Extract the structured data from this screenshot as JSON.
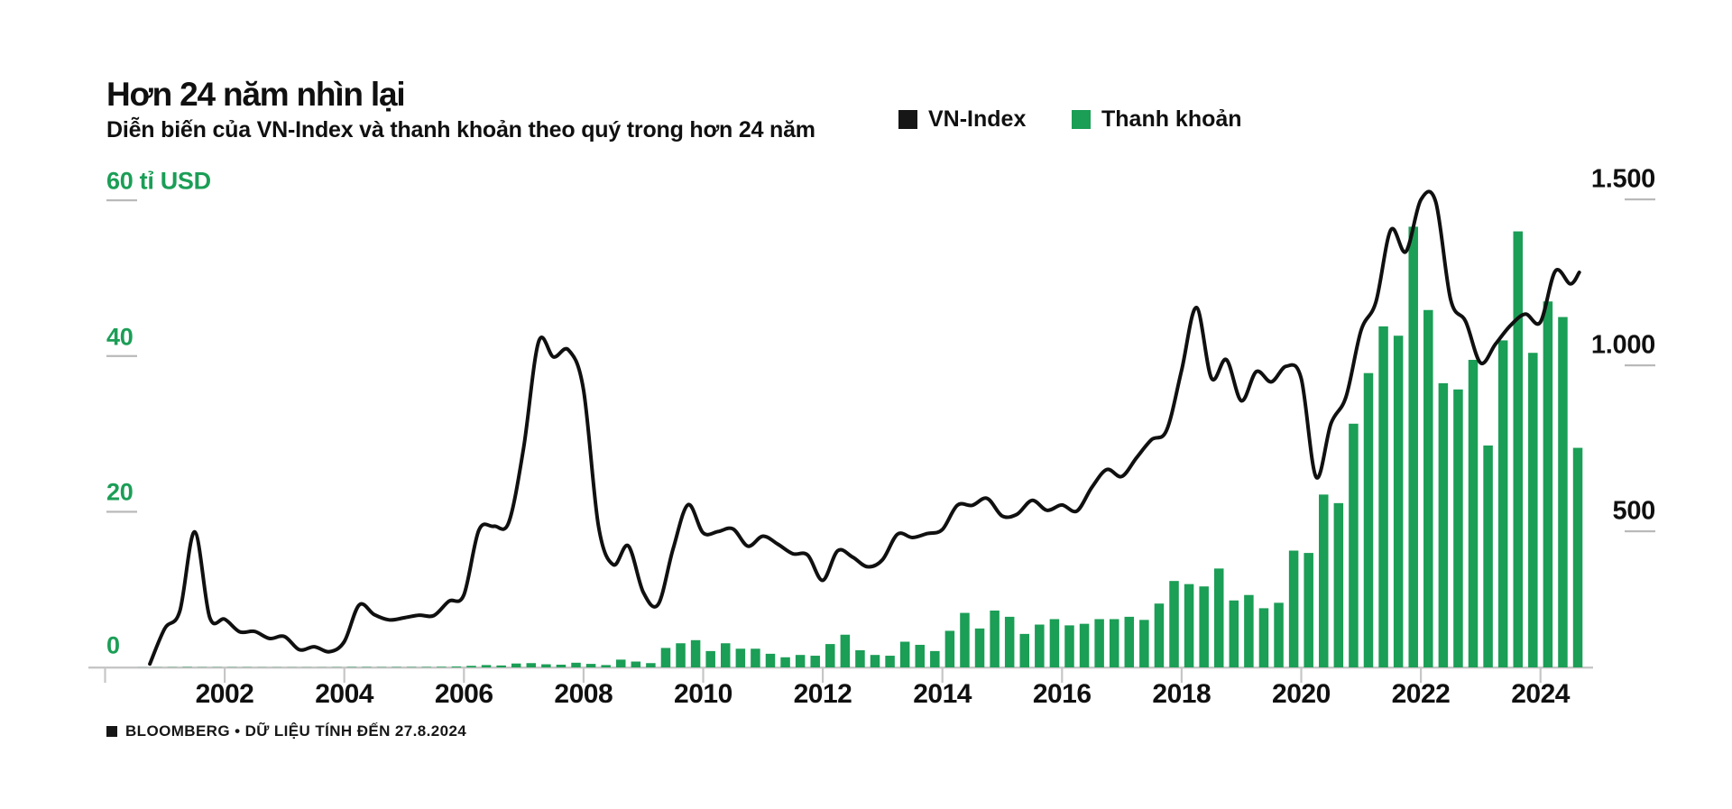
{
  "header": {
    "title": "Hơn 24 năm nhìn lại",
    "subtitle": "Diễn biến của VN-Index và thanh khoản theo quý trong hơn 24 năm"
  },
  "legend": {
    "line_label": "VN-Index",
    "line_color": "#161616",
    "bar_label": "Thanh khoản",
    "bar_color": "#1B9E56"
  },
  "source": "BLOOMBERG • DỮ LIỆU TÍNH ĐẾN 27.8.2024",
  "chart_data": {
    "type": "combo-bar-line",
    "title": "Hơn 24 năm nhìn lại",
    "subtitle": "Diễn biến của VN-Index và thanh khoản theo quý trong hơn 24 năm",
    "grid": "off",
    "legend_position": "top",
    "x_axis": {
      "unit": "year (quarterly data)",
      "tick_years": [
        2000,
        2002,
        2004,
        2006,
        2008,
        2010,
        2012,
        2014,
        2016,
        2018,
        2020,
        2022,
        2024
      ],
      "labeled_years": [
        2002,
        2004,
        2006,
        2008,
        2010,
        2012,
        2014,
        2016,
        2018,
        2020,
        2022,
        2024
      ],
      "range_start": "2000-Q3",
      "range_end": "2024-08-27"
    },
    "left_axis": {
      "title": "60 tỉ USD",
      "labels": [
        "60 tỉ USD",
        "40",
        "20",
        "0"
      ],
      "values": [
        60,
        40,
        20,
        0
      ],
      "ylim": [
        0,
        60
      ],
      "unit": "tỉ USD",
      "color": "#1B9E56",
      "applies_to": "Thanh khoản bars"
    },
    "right_axis": {
      "labels": [
        "1.500",
        "1.000",
        "500"
      ],
      "values": [
        1500,
        1000,
        500
      ],
      "ylim": [
        0,
        1500
      ],
      "unit": "index points",
      "color": "#101010",
      "applies_to": "VN-Index line"
    },
    "start_quarter": "2000-Q3",
    "series": [
      {
        "name": "VN-Index",
        "type": "line",
        "axis": "right",
        "color": "#101010",
        "values": [
          100,
          207,
          259,
          498,
          241,
          235,
          197,
          198,
          177,
          183,
          143,
          152,
          137,
          167,
          278,
          249,
          233,
          239,
          247,
          246,
          289,
          308,
          503,
          515,
          526,
          752,
          1071,
          1025,
          1046,
          927,
          516,
          399,
          456,
          316,
          280,
          448,
          580,
          495,
          499,
          507,
          455,
          485,
          461,
          432,
          428,
          352,
          441,
          422,
          393,
          414,
          491,
          481,
          493,
          505,
          578,
          578,
          599,
          546,
          551,
          593,
          563,
          579,
          561,
          632,
          686,
          665,
          722,
          776,
          804,
          984,
          1174,
          961,
          1017,
          893,
          981,
          950,
          997,
          961,
          663,
          825,
          905,
          1104,
          1191,
          1408,
          1342,
          1498,
          1492,
          1198,
          1132,
          1007,
          1064,
          1120,
          1154,
          1130,
          1284,
          1245,
          1280
        ]
      },
      {
        "name": "Thanh khoản",
        "type": "bar",
        "axis": "left",
        "color": "#1B9E56",
        "values": [
          0.01,
          0.02,
          0.03,
          0.05,
          0.03,
          0.03,
          0.03,
          0.03,
          0.02,
          0.02,
          0.02,
          0.02,
          0.02,
          0.03,
          0.05,
          0.05,
          0.04,
          0.05,
          0.05,
          0.06,
          0.08,
          0.12,
          0.2,
          0.3,
          0.25,
          0.5,
          0.55,
          0.4,
          0.35,
          0.6,
          0.45,
          0.3,
          1.0,
          0.75,
          0.55,
          2.5,
          3.1,
          3.5,
          2.1,
          3.1,
          2.4,
          2.4,
          1.75,
          1.3,
          1.6,
          1.5,
          3.0,
          4.2,
          2.2,
          1.6,
          1.5,
          3.3,
          2.9,
          2.1,
          4.7,
          7.0,
          5.0,
          7.3,
          6.5,
          4.3,
          5.5,
          6.2,
          5.4,
          5.6,
          6.2,
          6.2,
          6.5,
          6.1,
          8.2,
          11.1,
          10.7,
          10.4,
          12.7,
          8.6,
          9.3,
          7.6,
          8.3,
          15.0,
          14.7,
          22.2,
          21.1,
          31.3,
          37.8,
          43.8,
          42.6,
          56.6,
          45.9,
          36.5,
          35.7,
          39.5,
          28.5,
          42.0,
          56.0,
          40.4,
          47.0,
          45.0,
          28.2
        ]
      }
    ]
  }
}
